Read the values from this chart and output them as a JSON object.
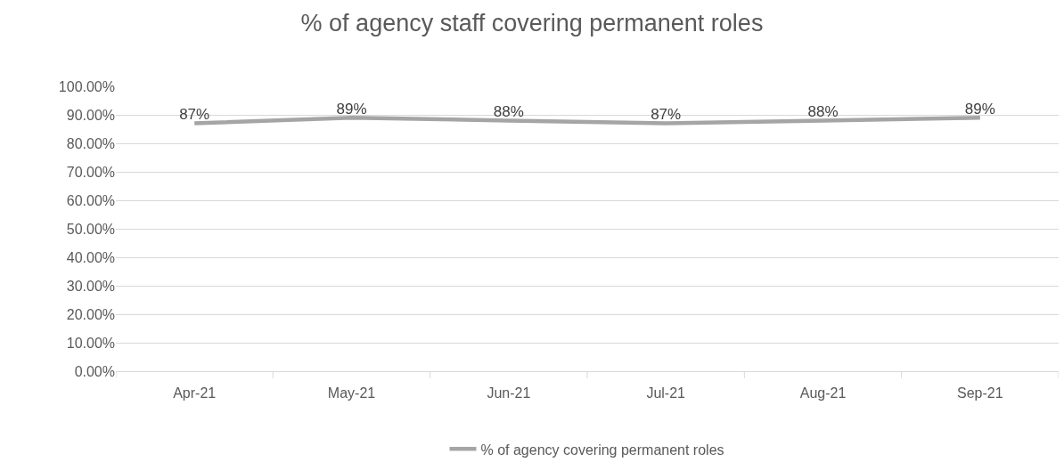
{
  "chart_data": {
    "type": "line",
    "title": "% of agency staff covering permanent roles",
    "categories": [
      "Apr-21",
      "May-21",
      "Jun-21",
      "Jul-21",
      "Aug-21",
      "Sep-21"
    ],
    "series": [
      {
        "name": "% of agency covering permanent roles",
        "color": "#a5a5a5",
        "values": [
          87,
          89,
          88,
          87,
          88,
          89
        ],
        "value_labels": [
          "87%",
          "89%",
          "88%",
          "87%",
          "88%",
          "89%"
        ]
      }
    ],
    "ylim": [
      0,
      100
    ],
    "yticks": [
      {
        "value": 0,
        "label": "0.00%"
      },
      {
        "value": 10,
        "label": "10.00%"
      },
      {
        "value": 20,
        "label": "20.00%"
      },
      {
        "value": 30,
        "label": "30.00%"
      },
      {
        "value": 40,
        "label": "40.00%"
      },
      {
        "value": 50,
        "label": "50.00%"
      },
      {
        "value": 60,
        "label": "60.00%"
      },
      {
        "value": 70,
        "label": "70.00%"
      },
      {
        "value": 80,
        "label": "80.00%"
      },
      {
        "value": 90,
        "label": "90.00%"
      },
      {
        "value": 100,
        "label": "100.00%"
      }
    ],
    "grid": "y",
    "legend": "bottom",
    "marker": "none",
    "line_style": "solid"
  }
}
